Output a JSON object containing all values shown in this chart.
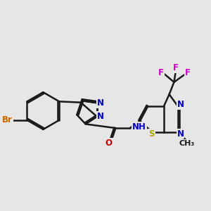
{
  "bg_color": "#e6e6e6",
  "bond_color": "#1a1a1a",
  "bond_width": 1.8,
  "atom_colors": {
    "Br": "#cc6600",
    "N": "#0000cc",
    "O": "#cc0000",
    "S": "#aaaa00",
    "F": "#cc00cc",
    "C": "#1a1a1a",
    "H": "#444444"
  },
  "font_size": 8.5
}
